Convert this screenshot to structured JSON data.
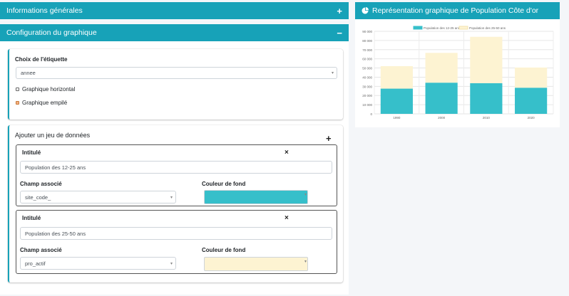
{
  "general": {
    "title": "Informations générales",
    "toggle": "+"
  },
  "config": {
    "title": "Configuration du graphique",
    "toggle": "−"
  },
  "label_card": {
    "title": "Choix de l'étiquette",
    "select_value": "annee",
    "horizontal_label": "Graphique horizontal",
    "horizontal_checked": false,
    "stacked_label": "Graphique empilé",
    "stacked_checked": true
  },
  "datasets_card": {
    "title": "Ajouter un jeu de données",
    "add_symbol": "+",
    "datasets": [
      {
        "title_label": "Intitulé",
        "title_value": "Population des 12-25 ans",
        "field_label": "Champ associé",
        "field_value": "site_code_",
        "color_label": "Couleur de fond",
        "color": "#36bfca",
        "remove_symbol": "×"
      },
      {
        "title_label": "Intitulé",
        "title_value": "Population des 25-50 ans",
        "field_label": "Champ associé",
        "field_value": "pro_actif",
        "color_label": "Couleur de fond",
        "color": "#fdf3d2",
        "remove_symbol": "×"
      }
    ]
  },
  "chart_panel": {
    "title": "Représentation graphique de Population Côte d'or",
    "icon": "pie-chart-icon"
  },
  "chart_data": {
    "type": "bar",
    "stacked": true,
    "categories": [
      "1990",
      "2000",
      "2010",
      "2020"
    ],
    "series": [
      {
        "name": "Population des 12-25 ans",
        "values": [
          27500,
          34000,
          33500,
          28500
        ],
        "color": "#36bfca"
      },
      {
        "name": "Population des 25-50 ans",
        "values": [
          24500,
          32500,
          50500,
          22000
        ],
        "color": "#fdf3d2"
      }
    ],
    "ylim": [
      0,
      90000
    ],
    "yticks": [
      "0",
      "10 000",
      "20 000",
      "30 000",
      "40 000",
      "50 000",
      "60 000",
      "70 000",
      "80 000",
      "90 000"
    ],
    "grid": true,
    "legend": "top"
  }
}
